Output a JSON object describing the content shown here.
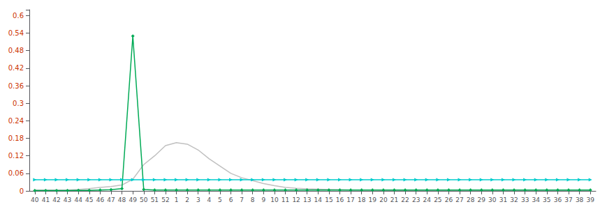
{
  "chart_data": {
    "type": "line",
    "categories": [
      "40",
      "41",
      "42",
      "43",
      "44",
      "45",
      "46",
      "47",
      "48",
      "49",
      "50",
      "51",
      "52",
      "1",
      "2",
      "3",
      "4",
      "5",
      "6",
      "7",
      "8",
      "9",
      "10",
      "11",
      "12",
      "13",
      "14",
      "15",
      "16",
      "17",
      "18",
      "19",
      "20",
      "21",
      "22",
      "23",
      "24",
      "25",
      "26",
      "27",
      "28",
      "29",
      "30",
      "31",
      "32",
      "33",
      "34",
      "35",
      "36",
      "37",
      "38",
      "39"
    ],
    "series": [
      {
        "color": "#c0c0c0",
        "marker": "none",
        "values": [
          0.003,
          0.003,
          0.003,
          0.003,
          0.005,
          0.008,
          0.012,
          0.015,
          0.02,
          0.04,
          0.09,
          0.12,
          0.155,
          0.165,
          0.16,
          0.14,
          0.11,
          0.085,
          0.06,
          0.045,
          0.035,
          0.025,
          0.018,
          0.012,
          0.009,
          0.007,
          0.006,
          0.005,
          0.004,
          0.003,
          0.003,
          0.003,
          0.002,
          0.002,
          0.002,
          0.002,
          0.002,
          0.002,
          0.002,
          0.002,
          0.002,
          0.002,
          0.002,
          0.002,
          0.002,
          0.002,
          0.002,
          0.002,
          0.002,
          0.002,
          0.002,
          0.002
        ]
      },
      {
        "color": "#00cccc",
        "marker": "triangle-right",
        "values": [
          0.038,
          0.038,
          0.038,
          0.038,
          0.038,
          0.038,
          0.038,
          0.038,
          0.038,
          0.038,
          0.038,
          0.038,
          0.038,
          0.038,
          0.038,
          0.038,
          0.038,
          0.038,
          0.038,
          0.038,
          0.038,
          0.038,
          0.038,
          0.038,
          0.038,
          0.038,
          0.038,
          0.038,
          0.038,
          0.038,
          0.038,
          0.038,
          0.038,
          0.038,
          0.038,
          0.038,
          0.038,
          0.038,
          0.038,
          0.038,
          0.038,
          0.038,
          0.038,
          0.038,
          0.038,
          0.038,
          0.038,
          0.038,
          0.038,
          0.038,
          0.038,
          0.038
        ]
      },
      {
        "color": "#00aa55",
        "marker": "diamond",
        "values": [
          0.001,
          0.001,
          0.001,
          0.001,
          0.002,
          0.002,
          0.003,
          0.004,
          0.008,
          0.53,
          0.005,
          0.003,
          0.003,
          0.003,
          0.003,
          0.003,
          0.003,
          0.003,
          0.003,
          0.003,
          0.003,
          0.003,
          0.003,
          0.003,
          0.003,
          0.003,
          0.003,
          0.003,
          0.003,
          0.003,
          0.003,
          0.003,
          0.003,
          0.003,
          0.003,
          0.003,
          0.003,
          0.003,
          0.003,
          0.003,
          0.003,
          0.003,
          0.003,
          0.003,
          0.003,
          0.003,
          0.003,
          0.003,
          0.003,
          0.003,
          0.003,
          0.003
        ]
      }
    ],
    "ylim": [
      0,
      0.62
    ],
    "yticks": [
      0,
      0.06,
      0.12,
      0.18,
      0.24,
      0.3,
      0.36,
      0.42,
      0.48,
      0.54,
      0.6
    ],
    "grid": false
  }
}
